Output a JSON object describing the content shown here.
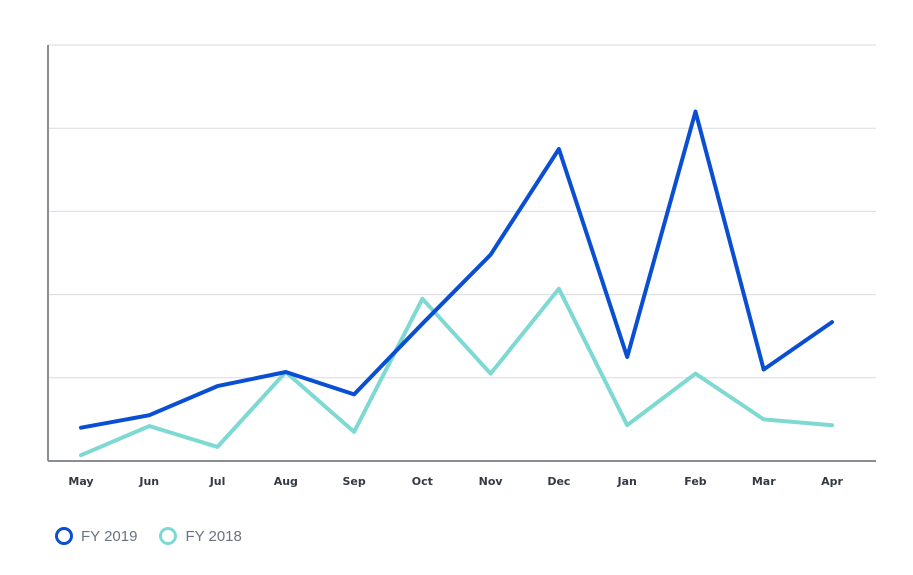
{
  "chart_data": {
    "type": "line",
    "title": "",
    "xlabel": "",
    "ylabel": "",
    "categories": [
      "May",
      "Jun",
      "Jul",
      "Aug",
      "Sep",
      "Oct",
      "Nov",
      "Dec",
      "Jan",
      "Feb",
      "Mar",
      "Apr"
    ],
    "ylim": [
      0,
      5
    ],
    "grid": true,
    "legend_position": "bottom-left",
    "series": [
      {
        "name": "FY 2019",
        "color": "#0a4fd1",
        "values": [
          0.4,
          0.55,
          0.9,
          1.07,
          0.8,
          1.65,
          2.48,
          3.75,
          1.25,
          4.2,
          1.1,
          1.67
        ]
      },
      {
        "name": "FY 2018",
        "color": "#7fd9d3",
        "values": [
          0.07,
          0.42,
          0.17,
          1.07,
          0.35,
          1.95,
          1.05,
          2.07,
          0.43,
          1.05,
          0.5,
          0.43
        ]
      }
    ]
  }
}
